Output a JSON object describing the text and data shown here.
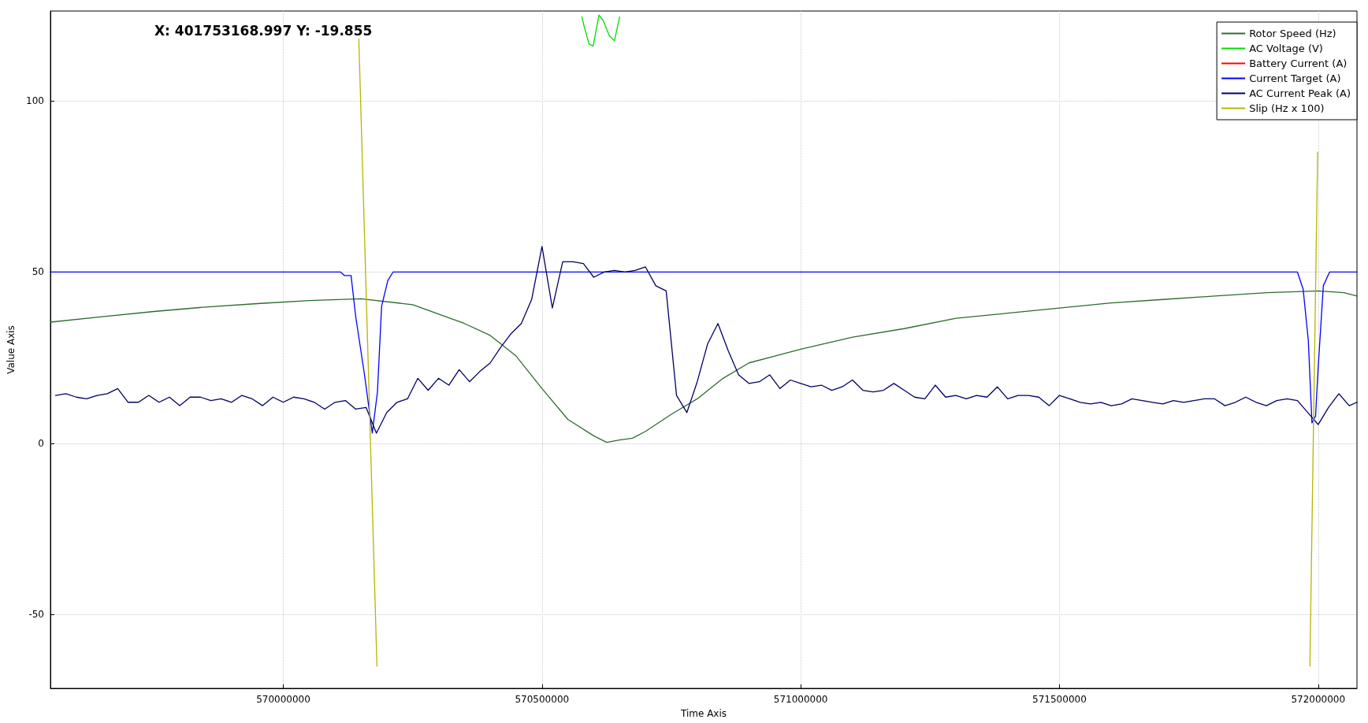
{
  "chart_data": {
    "type": "line",
    "xlabel": "Time Axis",
    "ylabel": "Value Axis",
    "annotations": [
      "X: 401753168.997 Y: -19.855"
    ],
    "xlim": [
      569550000,
      572075000
    ],
    "xticks": [
      570000000,
      570500000,
      571000000,
      571500000,
      572000000
    ],
    "ylim": [
      -71.5,
      126.2
    ],
    "yticks": [
      -50,
      0,
      50,
      100
    ],
    "grid": true,
    "legend": "top right",
    "marker": "none",
    "line_style": "solid",
    "series": [
      {
        "name": "Rotor Speed (Hz)",
        "color": "#2e6b2e",
        "x": [
          569550000,
          569650000,
          569750000,
          569850000,
          569950000,
          570050000,
          570150000,
          570250000,
          570350000,
          570400000,
          570450000,
          570500000,
          570550000,
          570600000,
          570625000,
          570650000,
          570675000,
          570700000,
          570750000,
          570800000,
          570850000,
          570900000,
          570950000,
          571000000,
          571100000,
          571200000,
          571300000,
          571400000,
          571500000,
          571600000,
          571700000,
          571800000,
          571900000,
          572000000,
          572050000,
          572075000
        ],
        "values": [
          35.4,
          37,
          38.5,
          39.8,
          40.8,
          41.7,
          42.2,
          40.5,
          35,
          31.5,
          25.5,
          16,
          7,
          2.2,
          0.3,
          1,
          1.5,
          3.5,
          8.5,
          13,
          19,
          23.5,
          25.5,
          27.5,
          31,
          33.5,
          36.5,
          38,
          39.5,
          41,
          42,
          43,
          44,
          44.5,
          44,
          43
        ]
      },
      {
        "name": "AC Voltage (V)",
        "color": "#00dd00",
        "x": [
          570577000,
          570581000,
          570591000,
          570599000,
          570610000,
          570618000,
          570630000,
          570640000,
          570650000
        ],
        "values": [
          124.5,
          122,
          116.5,
          116,
          125,
          123.5,
          119,
          117.5,
          124.5
        ]
      },
      {
        "name": "Battery Current (A)",
        "color": "#ff0000"
      },
      {
        "name": "Current Target (A)",
        "color": "#0000ff",
        "x": [
          569550000,
          570111000,
          570118000,
          570131000,
          570140000,
          570157000,
          570172000,
          570182000,
          570190000,
          570202000,
          570212000,
          571960000,
          571971000,
          571981000,
          571988000,
          571995000,
          572000000,
          572010000,
          572022000,
          572075000
        ],
        "values": [
          50,
          50,
          49,
          49,
          37,
          20,
          3,
          15,
          40,
          47.5,
          50,
          50,
          45,
          30,
          6,
          8,
          22,
          46,
          50,
          50
        ]
      },
      {
        "name": "AC Current Peak (A)",
        "color": "#000066",
        "x": [
          569560000,
          569580000,
          569600000,
          569620000,
          569640000,
          569660000,
          569680000,
          569700000,
          569720000,
          569740000,
          569760000,
          569780000,
          569800000,
          569820000,
          569840000,
          569860000,
          569880000,
          569900000,
          569920000,
          569940000,
          569960000,
          569980000,
          570000000,
          570020000,
          570040000,
          570060000,
          570080000,
          570100000,
          570120000,
          570140000,
          570160000,
          570180000,
          570200000,
          570220000,
          570240000,
          570260000,
          570280000,
          570300000,
          570320000,
          570340000,
          570360000,
          570380000,
          570400000,
          570420000,
          570440000,
          570460000,
          570480000,
          570500000,
          570520000,
          570540000,
          570560000,
          570580000,
          570600000,
          570620000,
          570640000,
          570660000,
          570680000,
          570700000,
          570720000,
          570740000,
          570760000,
          570780000,
          570800000,
          570820000,
          570840000,
          570860000,
          570880000,
          570900000,
          570920000,
          570940000,
          570960000,
          570980000,
          571000000,
          571020000,
          571040000,
          571060000,
          571080000,
          571100000,
          571120000,
          571140000,
          571160000,
          571180000,
          571200000,
          571220000,
          571240000,
          571260000,
          571280000,
          571300000,
          571320000,
          571340000,
          571360000,
          571380000,
          571400000,
          571420000,
          571440000,
          571460000,
          571480000,
          571500000,
          571520000,
          571540000,
          571560000,
          571580000,
          571600000,
          571620000,
          571640000,
          571660000,
          571680000,
          571700000,
          571720000,
          571740000,
          571760000,
          571780000,
          571800000,
          571820000,
          571840000,
          571860000,
          571880000,
          571900000,
          571920000,
          571940000,
          571960000,
          571980000,
          572000000,
          572020000,
          572040000,
          572060000,
          572075000
        ],
        "values": [
          14,
          14.5,
          13.5,
          13,
          14,
          14.5,
          16,
          12,
          12,
          14,
          12,
          13.5,
          11,
          13.5,
          13.5,
          12.5,
          13,
          12,
          14,
          13,
          11,
          13.5,
          12,
          13.5,
          13,
          12,
          10,
          12,
          12.5,
          10,
          10.5,
          3,
          9,
          12,
          13,
          19,
          15.5,
          19,
          17,
          21.5,
          18,
          21,
          23.5,
          28,
          32,
          35,
          42,
          57.5,
          39.5,
          53,
          53,
          52.5,
          48.5,
          50,
          50.5,
          50,
          50.5,
          51.5,
          46,
          44.5,
          14,
          9,
          18,
          29,
          35,
          27,
          20,
          17.5,
          18,
          20,
          16,
          18.5,
          17.5,
          16.5,
          17,
          15.5,
          16.5,
          18.5,
          15.5,
          15,
          15.5,
          17.5,
          15.5,
          13.5,
          13,
          17,
          13.5,
          14,
          13,
          14,
          13.5,
          16.5,
          13,
          14,
          14,
          13.5,
          11,
          14,
          13,
          12,
          11.5,
          12,
          11,
          11.5,
          13,
          12.5,
          12,
          11.5,
          12.5,
          12,
          12.5,
          13,
          13,
          11,
          12,
          13.5,
          12,
          11,
          12.5,
          13,
          12.5,
          9,
          5.5,
          10.5,
          14.5,
          11,
          12
        ]
      },
      {
        "name": "Slip (Hz x 100)",
        "color": "#b5b500",
        "x": [
          570146000,
          570181000,
          571000000,
          571984000,
          571999000
        ],
        "values": [
          118,
          -65,
          null,
          -65,
          85
        ]
      }
    ]
  }
}
